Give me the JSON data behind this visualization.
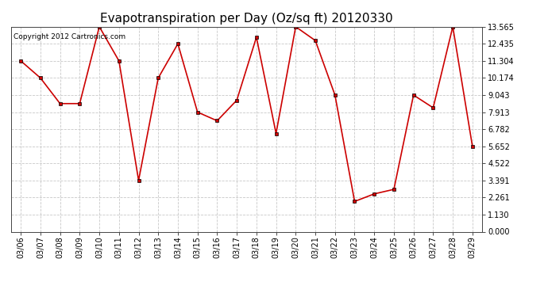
{
  "title": "Evapotranspiration per Day (Oz/sq ft) 20120330",
  "copyright": "Copyright 2012 Cartronics.com",
  "dates": [
    "03/06",
    "03/07",
    "03/08",
    "03/09",
    "03/10",
    "03/11",
    "03/12",
    "03/13",
    "03/14",
    "03/15",
    "03/16",
    "03/17",
    "03/18",
    "03/19",
    "03/20",
    "03/21",
    "03/22",
    "03/23",
    "03/24",
    "03/25",
    "03/26",
    "03/27",
    "03/28",
    "03/29"
  ],
  "values": [
    11.304,
    10.174,
    8.478,
    8.478,
    13.565,
    11.304,
    3.391,
    10.174,
    12.435,
    7.913,
    7.34,
    8.7,
    12.87,
    6.5,
    13.565,
    12.65,
    9.043,
    2.0,
    2.5,
    2.8,
    9.043,
    8.2,
    13.565,
    5.652
  ],
  "line_color": "#cc0000",
  "marker": "s",
  "marker_size": 2.5,
  "bg_color": "#ffffff",
  "plot_bg_color": "#ffffff",
  "grid_color": "#c8c8c8",
  "yticks": [
    0.0,
    1.13,
    2.261,
    3.391,
    4.522,
    5.652,
    6.782,
    7.913,
    9.043,
    10.174,
    11.304,
    12.435,
    13.565
  ],
  "ylim": [
    0.0,
    13.565
  ],
  "title_fontsize": 11,
  "copyright_fontsize": 6.5,
  "tick_fontsize": 7,
  "linewidth": 1.2
}
